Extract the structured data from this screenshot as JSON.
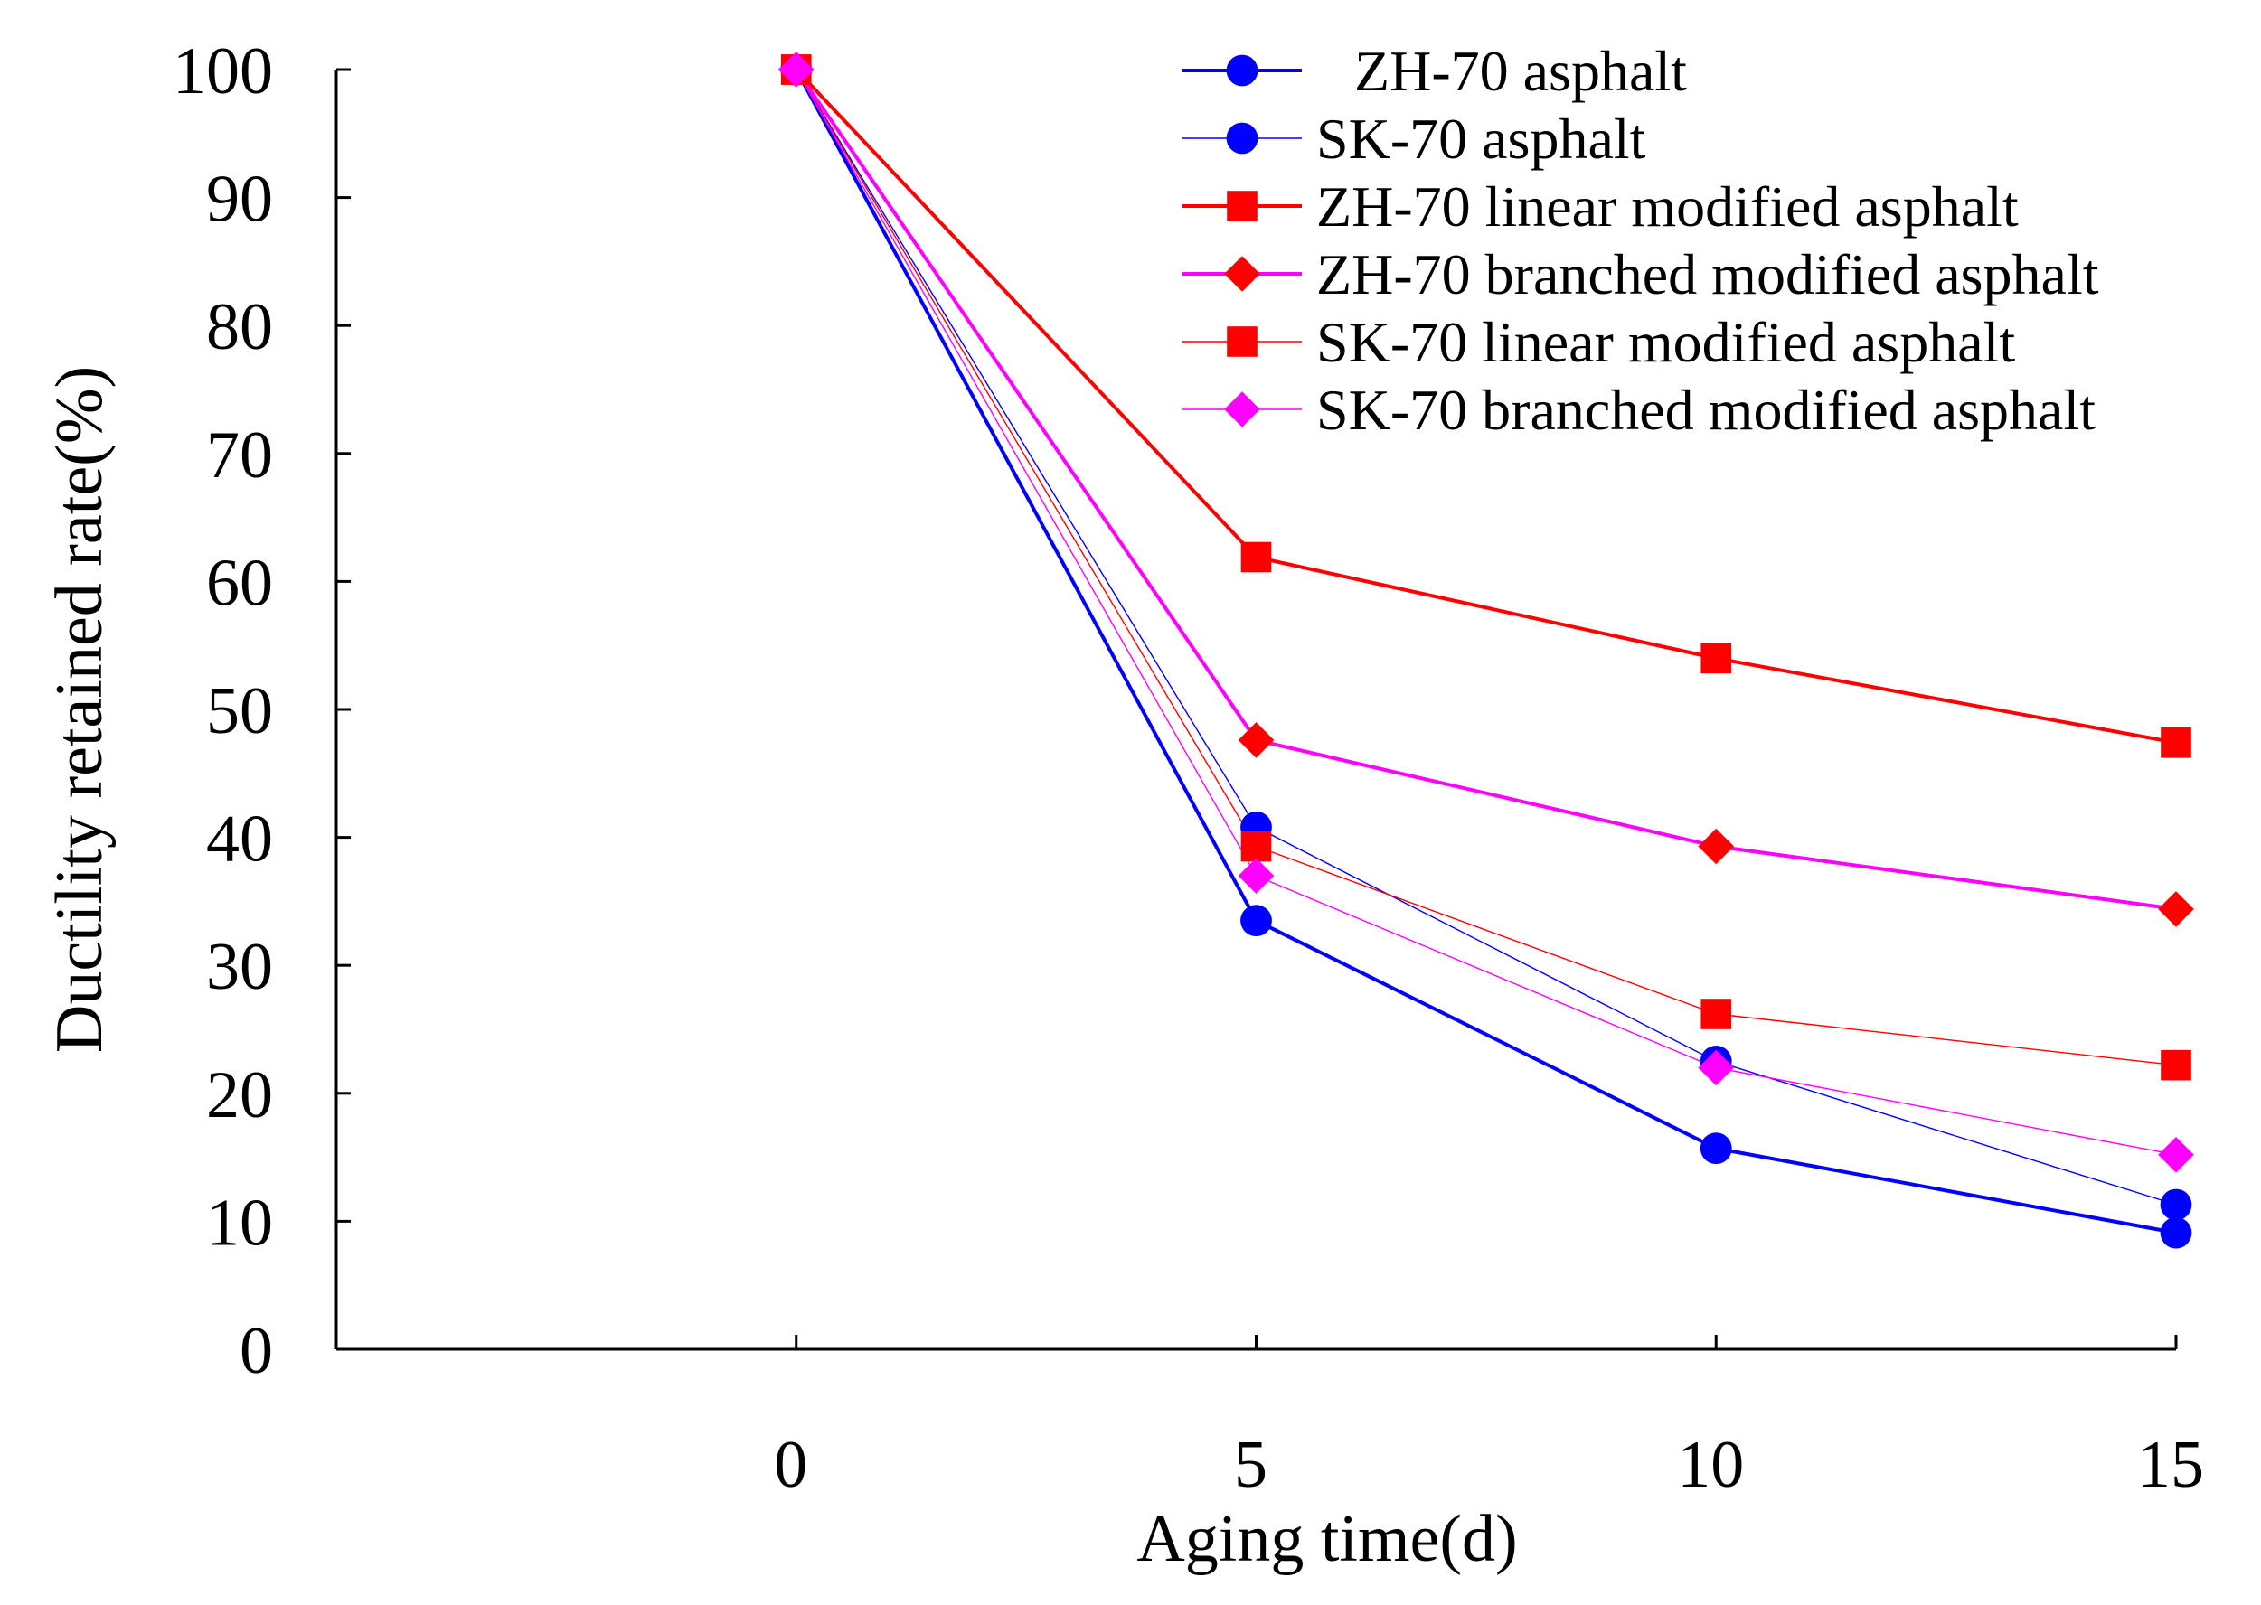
{
  "chart_data": {
    "type": "line",
    "xlabel": "Aging time(d)",
    "ylabel": "Ductility retained rate(%)",
    "xlim": [
      -5,
      15
    ],
    "ylim": [
      0,
      100
    ],
    "x_ticks": [
      0,
      5,
      10,
      15
    ],
    "y_ticks": [
      0,
      10,
      20,
      30,
      40,
      50,
      60,
      70,
      80,
      90,
      100
    ],
    "grid": false,
    "legend_position": "top-right",
    "series": [
      {
        "name": "ZH-70 asphalt",
        "x": [
          0,
          5,
          10,
          15
        ],
        "values": [
          100,
          33.5,
          15.7,
          9.1
        ],
        "color": "#0000ff",
        "marker": "circle",
        "line_style": "thick"
      },
      {
        "name": "SK-70 asphalt",
        "x": [
          0,
          5,
          10,
          15
        ],
        "values": [
          100,
          40.8,
          22.5,
          11.3
        ],
        "color": "#0000ff",
        "marker": "circle",
        "line_style": "thin"
      },
      {
        "name": "ZH-70 linear modified asphalt",
        "x": [
          0,
          5,
          10,
          15
        ],
        "values": [
          100,
          61.9,
          54,
          47.4
        ],
        "color": "#ff0000",
        "marker": "square",
        "line_style": "thick"
      },
      {
        "name": "ZH-70 branched modified asphalt",
        "x": [
          0,
          5,
          10,
          15
        ],
        "values": [
          100,
          47.6,
          39.3,
          34.4
        ],
        "color": "#ff00ff",
        "marker_fill": "#ff0000",
        "marker": "diamond",
        "line_style": "thick"
      },
      {
        "name": "SK-70 linear modified asphalt",
        "x": [
          0,
          5,
          10,
          15
        ],
        "values": [
          100,
          39.3,
          26.2,
          22.2
        ],
        "color": "#ff0000",
        "marker": "square",
        "line_style": "thin"
      },
      {
        "name": "SK-70 branched modified asphalt",
        "x": [
          0,
          5,
          10,
          15
        ],
        "values": [
          100,
          37,
          22,
          15.2
        ],
        "color": "#ff00ff",
        "marker": "diamond",
        "line_style": "thin"
      }
    ]
  }
}
